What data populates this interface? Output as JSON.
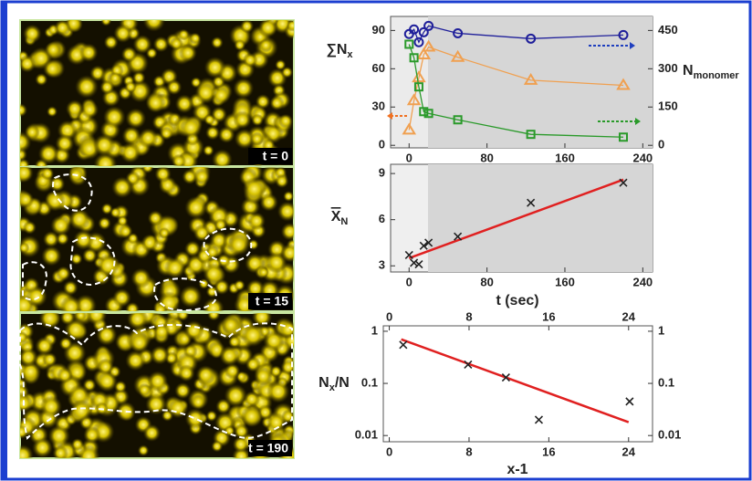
{
  "panels": [
    {
      "label": "t = 0"
    },
    {
      "label": "t = 15"
    },
    {
      "label": "t = 190"
    }
  ],
  "chart_data": [
    {
      "type": "line",
      "ylabel": "∑N",
      "ylabel_sub": "x",
      "y2label": "N",
      "y2label_sub": "monomer",
      "xlim": [
        -19,
        250
      ],
      "xticks": [
        0,
        80,
        160,
        240
      ],
      "ylim": [
        -2,
        101
      ],
      "yticks": [
        0,
        30,
        60,
        90
      ],
      "y2lim": [
        -10,
        505
      ],
      "y2ticks": [
        0,
        150,
        300,
        450
      ],
      "series": [
        {
          "color": "#1f1f9a",
          "marker": "circle",
          "axis": "y2",
          "x": [
            0,
            5,
            10,
            15,
            20,
            50,
            125,
            220
          ],
          "values": [
            436,
            454,
            404,
            443,
            468,
            439,
            418,
            432
          ]
        },
        {
          "color": "#f0a050",
          "marker": "triangle",
          "axis": "y",
          "x": [
            0,
            5,
            10,
            15,
            20,
            50,
            125,
            220
          ],
          "values": [
            12,
            35,
            53,
            71,
            77,
            69,
            51,
            47
          ]
        },
        {
          "color": "#2a9a2a",
          "marker": "square",
          "axis": "y2",
          "x": [
            0,
            5,
            10,
            15,
            20,
            50,
            125,
            220
          ],
          "values": [
            396,
            343,
            229,
            132,
            125,
            100,
            43,
            32
          ]
        }
      ]
    },
    {
      "type": "scatter",
      "xlabel": "t (sec)",
      "ylabel": "X",
      "ylabel_sub": "N",
      "xlim": [
        -19,
        250
      ],
      "xticks": [
        0,
        80,
        160,
        240
      ],
      "ylim": [
        2.6,
        9.6
      ],
      "yticks": [
        3,
        6,
        9
      ],
      "series": [
        {
          "color": "#222222",
          "marker": "x",
          "x": [
            0,
            5,
            10,
            15,
            20,
            50,
            125,
            220
          ],
          "values": [
            3.7,
            3.2,
            3.1,
            4.3,
            4.5,
            4.9,
            7.1,
            8.4
          ]
        }
      ],
      "fit": {
        "color": "#e02020",
        "x": [
          0,
          220
        ],
        "values": [
          3.5,
          8.6
        ]
      }
    },
    {
      "type": "scatter",
      "xlabel": "x-1",
      "ylabel": "N",
      "ylabel_sub": "x",
      "ylabel_tail": "/N",
      "log_y": true,
      "xlim": [
        -0.6,
        26.4
      ],
      "xticks": [
        0,
        8,
        16,
        24
      ],
      "x2ticks": [
        0,
        8,
        16,
        24
      ],
      "ylim": [
        0.0076,
        1.27
      ],
      "yticks": [
        0.01,
        0.1,
        1
      ],
      "y2ticks": [
        0.01,
        0.1,
        1
      ],
      "series": [
        {
          "color": "#222222",
          "marker": "x",
          "x": [
            1.4,
            7.9,
            11.7,
            15,
            24.1
          ],
          "values": [
            0.55,
            0.23,
            0.13,
            0.02,
            0.045
          ]
        }
      ],
      "fit": {
        "color": "#e02020",
        "x": [
          1.2,
          24
        ],
        "values": [
          0.7,
          0.018
        ]
      }
    }
  ]
}
